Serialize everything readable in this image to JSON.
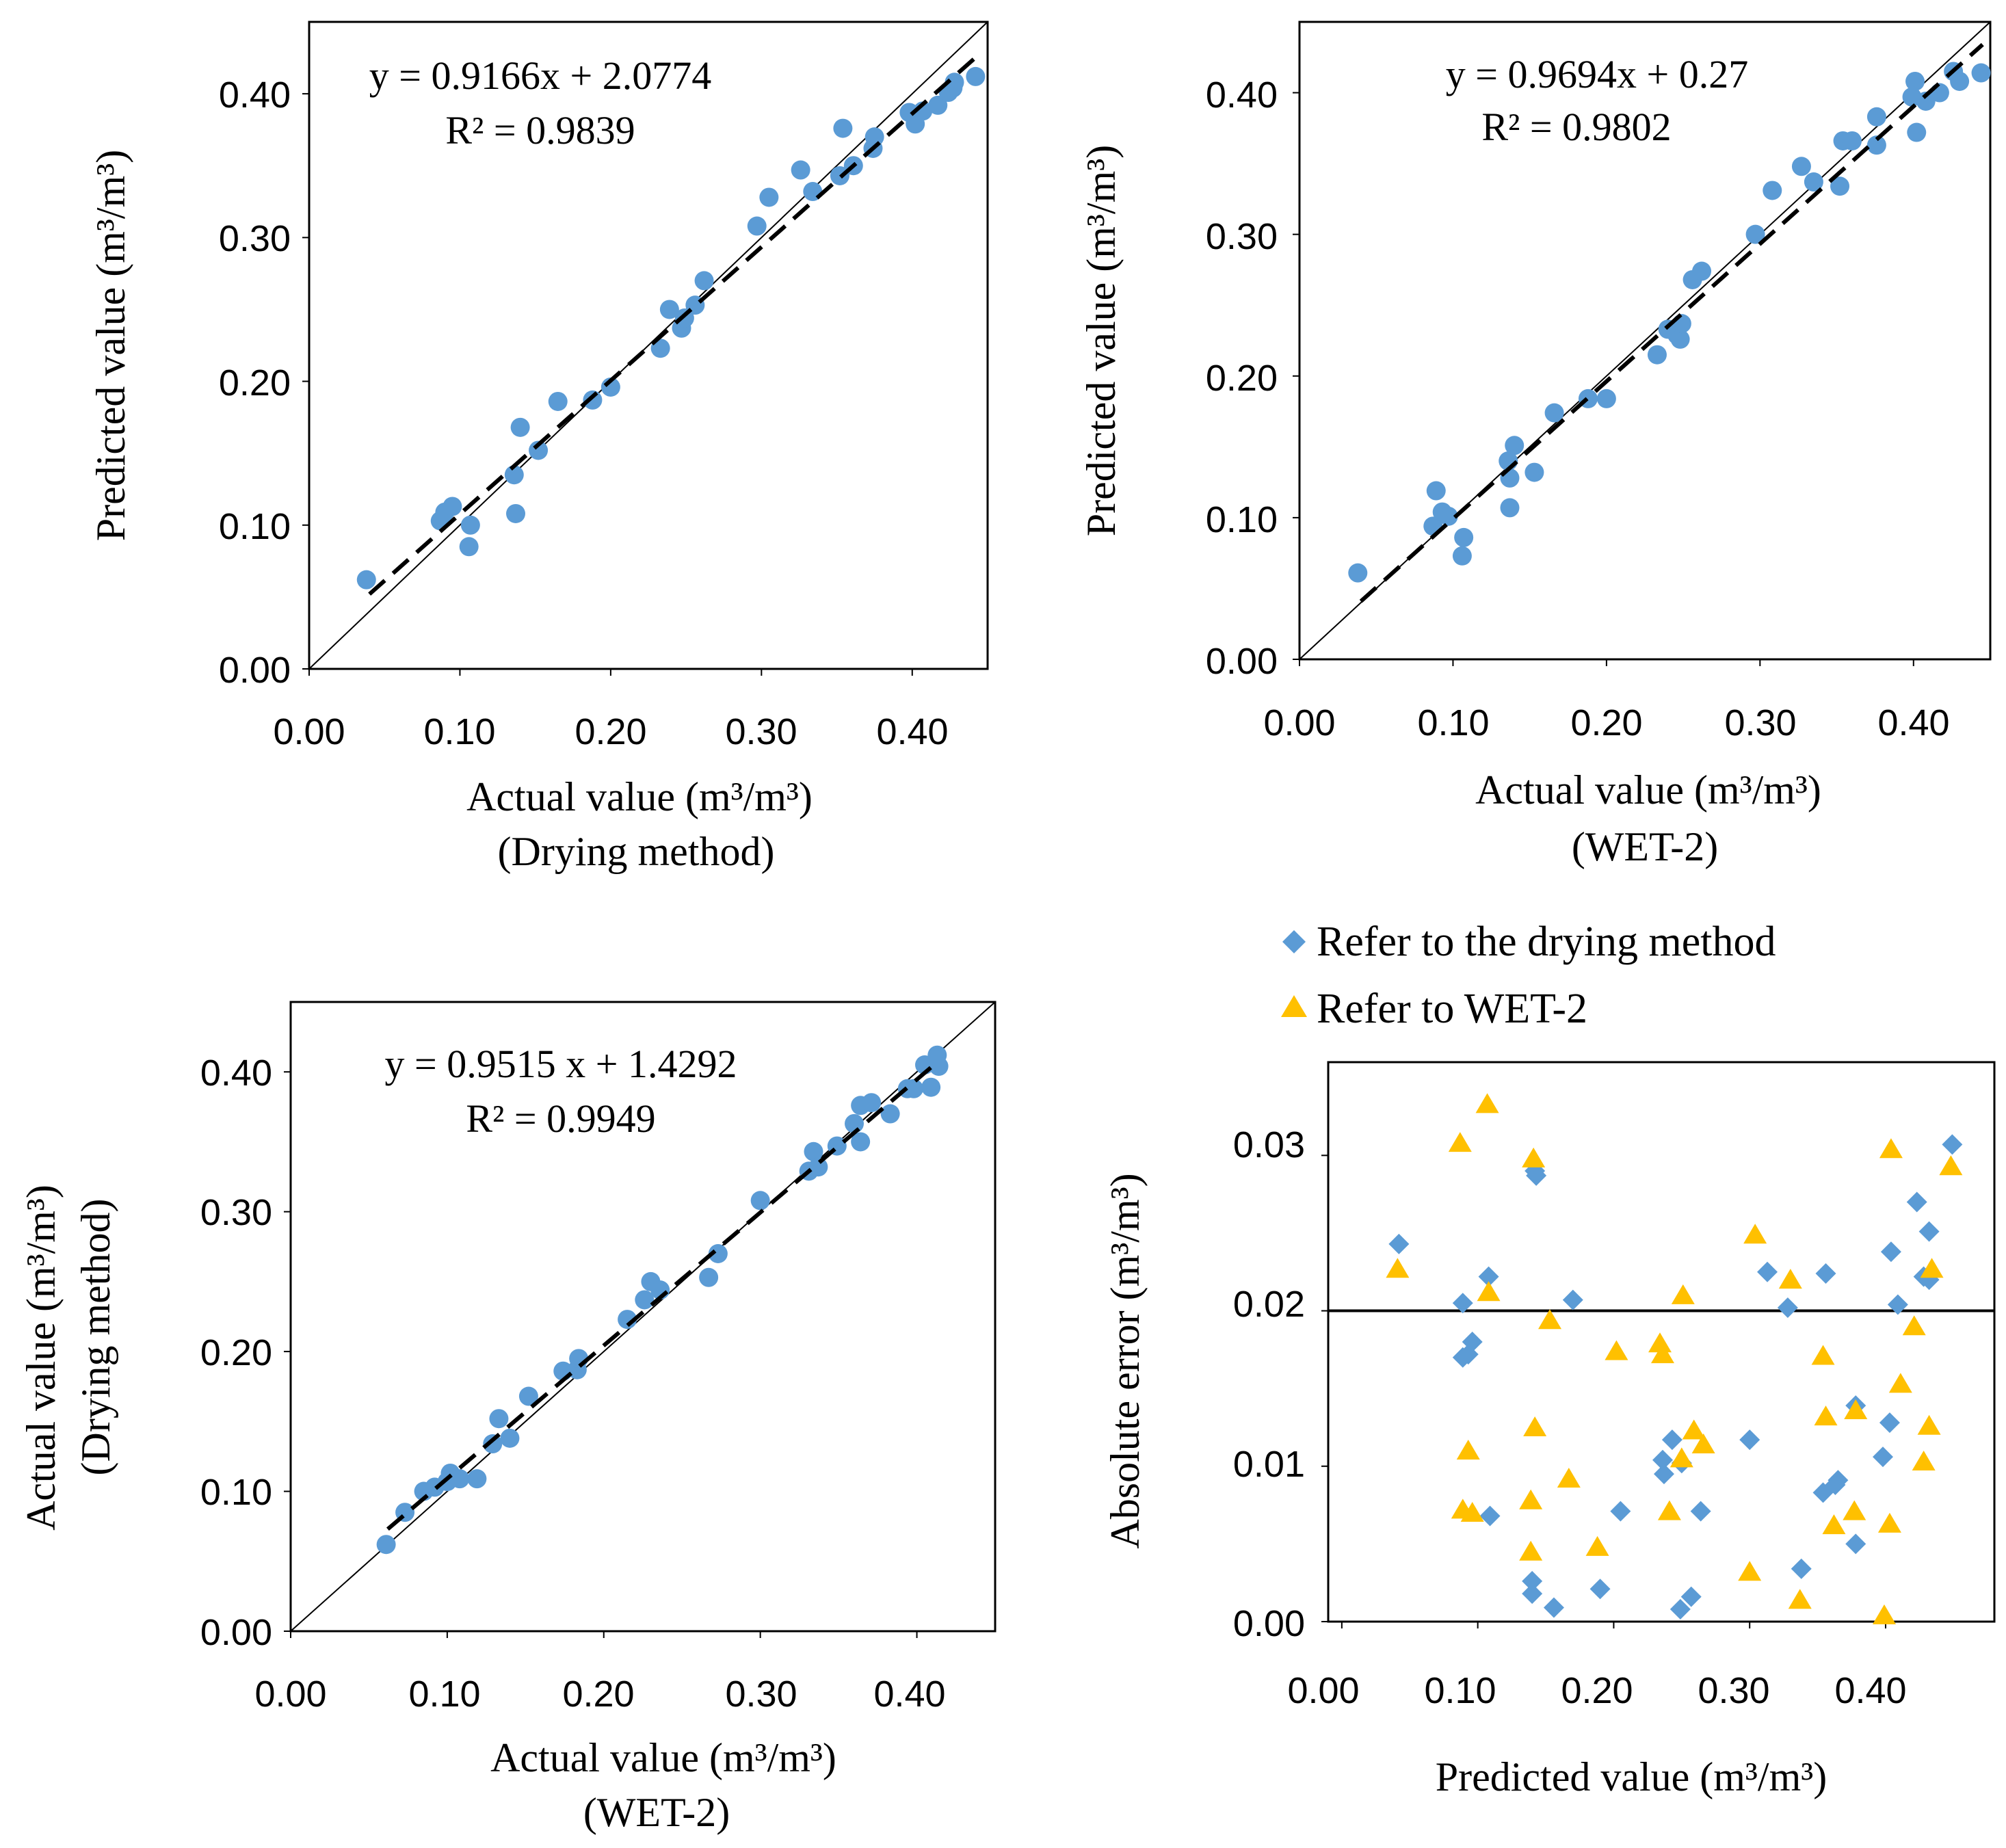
{
  "colors": {
    "blue": "#5B9BD5",
    "gold": "#FFC000",
    "axis": "#000000"
  },
  "chart_data": [
    {
      "id": "a",
      "type": "scatter",
      "xlim": [
        0,
        0.45
      ],
      "ylim": [
        0,
        0.45
      ],
      "xticks": [
        "0.00",
        "0.10",
        "0.20",
        "0.30",
        "0.40"
      ],
      "yticks": [
        "0.00",
        "0.10",
        "0.20",
        "0.30",
        "0.40"
      ],
      "xticks_v": [
        0,
        0.1,
        0.2,
        0.3,
        0.4
      ],
      "yticks_v": [
        0,
        0.1,
        0.2,
        0.3,
        0.4
      ],
      "ylabel": "Predicted value (m³/m³)",
      "xlabel": "Actual value (m³/m³)",
      "xsub": "(Drying method)",
      "equation": "y = 0.9166x + 2.0774",
      "r2": "R² = 0.9839",
      "trend": {
        "x0": 0.04,
        "y0": 0.052,
        "x1": 0.445,
        "y1": 0.428
      },
      "identity_line": true,
      "points": [
        [
          0.038,
          0.062
        ],
        [
          0.087,
          0.103
        ],
        [
          0.09,
          0.109
        ],
        [
          0.095,
          0.113
        ],
        [
          0.106,
          0.085
        ],
        [
          0.107,
          0.1
        ],
        [
          0.136,
          0.135
        ],
        [
          0.137,
          0.108
        ],
        [
          0.14,
          0.168
        ],
        [
          0.152,
          0.152
        ],
        [
          0.165,
          0.186
        ],
        [
          0.188,
          0.187
        ],
        [
          0.2,
          0.196
        ],
        [
          0.233,
          0.223
        ],
        [
          0.239,
          0.25
        ],
        [
          0.247,
          0.237
        ],
        [
          0.249,
          0.244
        ],
        [
          0.256,
          0.253
        ],
        [
          0.262,
          0.27
        ],
        [
          0.297,
          0.308
        ],
        [
          0.305,
          0.328
        ],
        [
          0.326,
          0.347
        ],
        [
          0.334,
          0.332
        ],
        [
          0.352,
          0.343
        ],
        [
          0.354,
          0.376
        ],
        [
          0.361,
          0.35
        ],
        [
          0.374,
          0.362
        ],
        [
          0.375,
          0.37
        ],
        [
          0.398,
          0.387
        ],
        [
          0.402,
          0.379
        ],
        [
          0.407,
          0.388
        ],
        [
          0.417,
          0.392
        ],
        [
          0.424,
          0.401
        ],
        [
          0.427,
          0.404
        ],
        [
          0.428,
          0.408
        ],
        [
          0.442,
          0.412
        ]
      ]
    },
    {
      "id": "b",
      "type": "scatter",
      "xlim": [
        0,
        0.45
      ],
      "ylim": [
        0,
        0.45
      ],
      "xticks": [
        "0.00",
        "0.10",
        "0.20",
        "0.30",
        "0.40"
      ],
      "yticks": [
        "0.00",
        "0.10",
        "0.20",
        "0.30",
        "0.40"
      ],
      "xticks_v": [
        0,
        0.1,
        0.2,
        0.3,
        0.4
      ],
      "yticks_v": [
        0,
        0.1,
        0.2,
        0.3,
        0.4
      ],
      "ylabel": "Predicted value (m³/m³)",
      "xlabel": "Actual value (m³/m³)",
      "xsub": "(WET-2)",
      "equation": "y = 0.9694x + 0.27",
      "r2": "R² = 0.9802",
      "trend": {
        "x0": 0.04,
        "y0": 0.041,
        "x1": 0.445,
        "y1": 0.434
      },
      "identity_line": true,
      "points": [
        [
          0.038,
          0.061
        ],
        [
          0.087,
          0.094
        ],
        [
          0.089,
          0.119
        ],
        [
          0.093,
          0.104
        ],
        [
          0.097,
          0.101
        ],
        [
          0.106,
          0.073
        ],
        [
          0.107,
          0.086
        ],
        [
          0.136,
          0.14
        ],
        [
          0.137,
          0.107
        ],
        [
          0.137,
          0.128
        ],
        [
          0.14,
          0.151
        ],
        [
          0.153,
          0.132
        ],
        [
          0.166,
          0.174
        ],
        [
          0.188,
          0.184
        ],
        [
          0.2,
          0.184
        ],
        [
          0.233,
          0.215
        ],
        [
          0.24,
          0.233
        ],
        [
          0.246,
          0.229
        ],
        [
          0.248,
          0.226
        ],
        [
          0.249,
          0.237
        ],
        [
          0.256,
          0.268
        ],
        [
          0.262,
          0.274
        ],
        [
          0.297,
          0.3
        ],
        [
          0.308,
          0.331
        ],
        [
          0.327,
          0.348
        ],
        [
          0.335,
          0.337
        ],
        [
          0.352,
          0.334
        ],
        [
          0.354,
          0.366
        ],
        [
          0.36,
          0.366
        ],
        [
          0.376,
          0.363
        ],
        [
          0.376,
          0.383
        ],
        [
          0.399,
          0.397
        ],
        [
          0.401,
          0.408
        ],
        [
          0.402,
          0.372
        ],
        [
          0.408,
          0.394
        ],
        [
          0.417,
          0.4
        ],
        [
          0.426,
          0.415
        ],
        [
          0.43,
          0.408
        ],
        [
          0.444,
          0.414
        ]
      ]
    },
    {
      "id": "c",
      "type": "scatter",
      "xlim": [
        0,
        0.45
      ],
      "ylim": [
        0,
        0.45
      ],
      "xticks": [
        "0.00",
        "0.10",
        "0.20",
        "0.30",
        "0.40"
      ],
      "yticks": [
        "0.00",
        "0.10",
        "0.20",
        "0.30",
        "0.40"
      ],
      "xticks_v": [
        0,
        0.1,
        0.2,
        0.3,
        0.4
      ],
      "yticks_v": [
        0,
        0.1,
        0.2,
        0.3,
        0.4
      ],
      "ylabel": "Actual value (m³/m³)",
      "ysub": "(Drying method)",
      "xlabel": "Actual value (m³/m³)",
      "xsub": "(WET-2)",
      "equation": "y = 0.9515 x + 1.4292",
      "r2": "R² = 0.9949",
      "trend": {
        "x0": 0.062,
        "y0": 0.073,
        "x1": 0.412,
        "y1": 0.406
      },
      "identity_line": true,
      "points": [
        [
          0.061,
          0.062
        ],
        [
          0.073,
          0.085
        ],
        [
          0.085,
          0.1
        ],
        [
          0.092,
          0.103
        ],
        [
          0.1,
          0.107
        ],
        [
          0.102,
          0.113
        ],
        [
          0.108,
          0.109
        ],
        [
          0.119,
          0.109
        ],
        [
          0.129,
          0.134
        ],
        [
          0.133,
          0.152
        ],
        [
          0.14,
          0.138
        ],
        [
          0.152,
          0.168
        ],
        [
          0.174,
          0.186
        ],
        [
          0.183,
          0.187
        ],
        [
          0.184,
          0.195
        ],
        [
          0.215,
          0.223
        ],
        [
          0.226,
          0.237
        ],
        [
          0.23,
          0.25
        ],
        [
          0.236,
          0.244
        ],
        [
          0.267,
          0.253
        ],
        [
          0.273,
          0.27
        ],
        [
          0.3,
          0.308
        ],
        [
          0.331,
          0.329
        ],
        [
          0.334,
          0.343
        ],
        [
          0.337,
          0.332
        ],
        [
          0.349,
          0.347
        ],
        [
          0.36,
          0.363
        ],
        [
          0.364,
          0.35
        ],
        [
          0.364,
          0.376
        ],
        [
          0.371,
          0.378
        ],
        [
          0.383,
          0.37
        ],
        [
          0.394,
          0.388
        ],
        [
          0.398,
          0.388
        ],
        [
          0.405,
          0.405
        ],
        [
          0.409,
          0.389
        ],
        [
          0.413,
          0.412
        ],
        [
          0.414,
          0.404
        ]
      ]
    },
    {
      "id": "d",
      "type": "scatter",
      "xlim": [
        -0.01,
        0.48
      ],
      "ylim": [
        0,
        0.036
      ],
      "xticks": [
        "0.00",
        "0.10",
        "0.20",
        "0.30",
        "0.40"
      ],
      "yticks": [
        "0.00",
        "0.01",
        "0.02",
        "0.03"
      ],
      "xticks_v": [
        0,
        0.1,
        0.2,
        0.3,
        0.4
      ],
      "yticks_v": [
        0,
        0.01,
        0.02,
        0.03
      ],
      "ylabel": "Absolute error (m³/m³)",
      "xlabel": "Predicted value (m³/m³)",
      "threshold": 0.02,
      "legend": [
        "Refer to the drying method",
        "Refer to WET-2"
      ],
      "series": [
        {
          "name": "Refer to the drying method",
          "marker": "diamond",
          "points": [
            [
              0.042,
              0.0243
            ],
            [
              0.089,
              0.017
            ],
            [
              0.089,
              0.0205
            ],
            [
              0.093,
              0.0172
            ],
            [
              0.096,
              0.018
            ],
            [
              0.108,
              0.0222
            ],
            [
              0.109,
              0.0068
            ],
            [
              0.14,
              0.0018
            ],
            [
              0.14,
              0.0026
            ],
            [
              0.142,
              0.029
            ],
            [
              0.143,
              0.0287
            ],
            [
              0.156,
              0.0009
            ],
            [
              0.17,
              0.0207
            ],
            [
              0.19,
              0.0021
            ],
            [
              0.205,
              0.0071
            ],
            [
              0.236,
              0.0104
            ],
            [
              0.237,
              0.0095
            ],
            [
              0.243,
              0.0117
            ],
            [
              0.249,
              0.0008
            ],
            [
              0.25,
              0.0102
            ],
            [
              0.257,
              0.0016
            ],
            [
              0.264,
              0.0071
            ],
            [
              0.3,
              0.0117
            ],
            [
              0.313,
              0.0225
            ],
            [
              0.328,
              0.0202
            ],
            [
              0.338,
              0.0034
            ],
            [
              0.354,
              0.0083
            ],
            [
              0.356,
              0.0224
            ],
            [
              0.363,
              0.0088
            ],
            [
              0.365,
              0.0091
            ],
            [
              0.378,
              0.005
            ],
            [
              0.378,
              0.0139
            ],
            [
              0.398,
              0.0106
            ],
            [
              0.403,
              0.0128
            ],
            [
              0.404,
              0.0238
            ],
            [
              0.409,
              0.0204
            ],
            [
              0.423,
              0.027
            ],
            [
              0.428,
              0.0222
            ],
            [
              0.432,
              0.0251
            ],
            [
              0.432,
              0.022
            ],
            [
              0.449,
              0.0307
            ]
          ]
        },
        {
          "name": "Refer to WET-2",
          "marker": "triangle",
          "points": [
            [
              0.041,
              0.0227
            ],
            [
              0.087,
              0.0308
            ],
            [
              0.089,
              0.0072
            ],
            [
              0.093,
              0.011
            ],
            [
              0.096,
              0.007
            ],
            [
              0.107,
              0.0333
            ],
            [
              0.108,
              0.0212
            ],
            [
              0.139,
              0.0045
            ],
            [
              0.139,
              0.0078
            ],
            [
              0.141,
              0.0298
            ],
            [
              0.142,
              0.0125
            ],
            [
              0.153,
              0.0194
            ],
            [
              0.167,
              0.0092
            ],
            [
              0.188,
              0.0048
            ],
            [
              0.202,
              0.0174
            ],
            [
              0.234,
              0.0179
            ],
            [
              0.236,
              0.0172
            ],
            [
              0.241,
              0.0071
            ],
            [
              0.25,
              0.0105
            ],
            [
              0.251,
              0.021
            ],
            [
              0.259,
              0.0123
            ],
            [
              0.266,
              0.0114
            ],
            [
              0.3,
              0.0032
            ],
            [
              0.304,
              0.0249
            ],
            [
              0.33,
              0.022
            ],
            [
              0.337,
              0.0014
            ],
            [
              0.354,
              0.0171
            ],
            [
              0.356,
              0.0132
            ],
            [
              0.362,
              0.0062
            ],
            [
              0.377,
              0.0071
            ],
            [
              0.378,
              0.0136
            ],
            [
              0.399,
              0.0004
            ],
            [
              0.403,
              0.0063
            ],
            [
              0.404,
              0.0304
            ],
            [
              0.411,
              0.0153
            ],
            [
              0.421,
              0.019
            ],
            [
              0.428,
              0.0103
            ],
            [
              0.432,
              0.0126
            ],
            [
              0.434,
              0.0227
            ],
            [
              0.448,
              0.0293
            ]
          ]
        }
      ]
    }
  ]
}
